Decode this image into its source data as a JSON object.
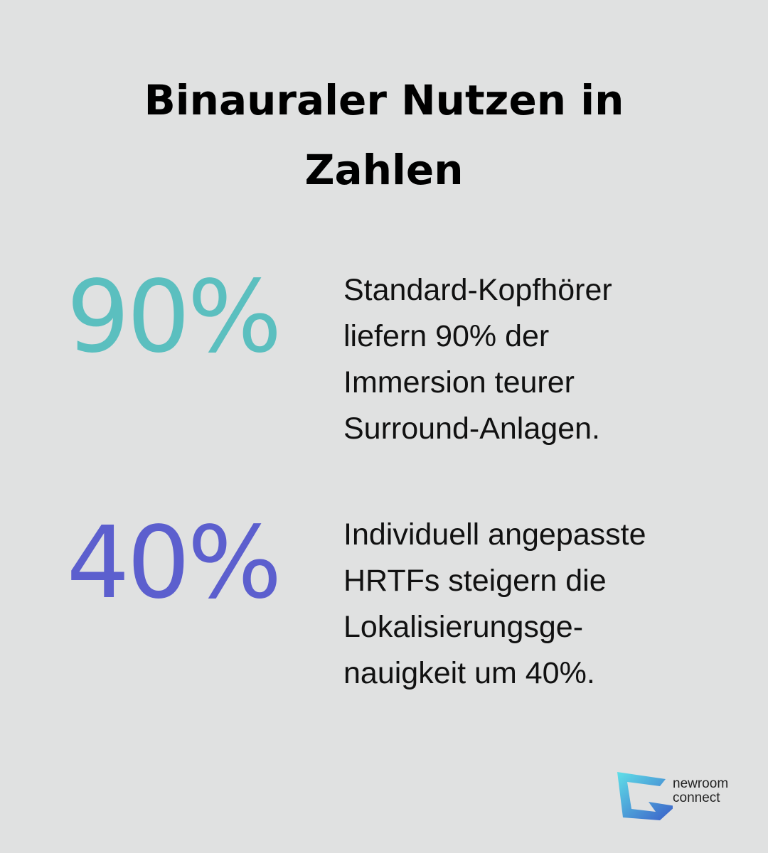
{
  "title": {
    "lines": [
      "Binauraler Nutzen in",
      "Zahlen"
    ]
  },
  "stats": [
    {
      "value": "90%",
      "color": "#5bbfbf",
      "description": [
        "Standard-Kopfhörer",
        "liefern 90% der",
        "Immersion teurer",
        "Surround-Anlagen."
      ]
    },
    {
      "value": "40%",
      "color": "#5c5fce",
      "description": [
        "Individuell angepasste",
        "HRTFs steigern die",
        "Lokalisierungsge-",
        "nauigkeit um 40%."
      ]
    }
  ],
  "logo": {
    "lines": [
      "newroom",
      "connect"
    ]
  }
}
